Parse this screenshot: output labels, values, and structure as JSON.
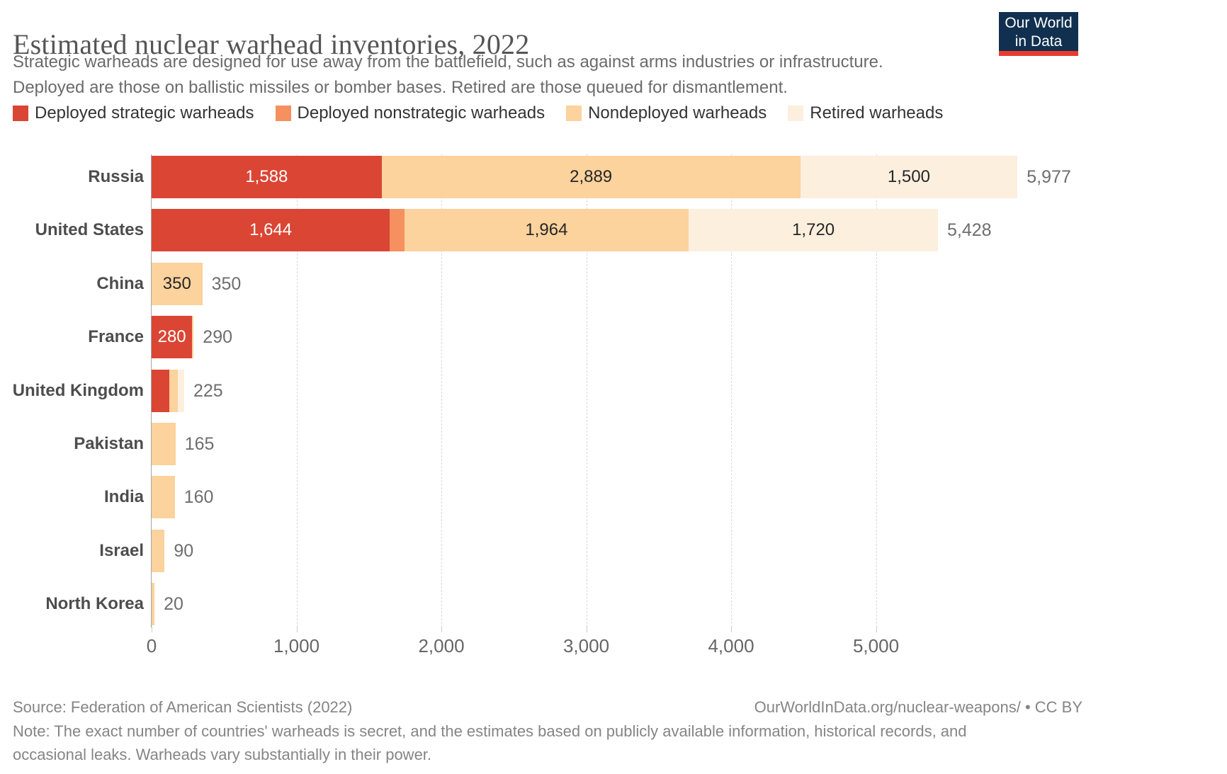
{
  "header": {
    "title": "Estimated nuclear warhead inventories, 2022",
    "subtitle_lines": [
      "Strategic warheads are designed for use away from the battlefield, such as against arms industries or infrastructure.",
      "Deployed are those on ballistic missiles or bomber bases. Retired are those queued for dismantlement."
    ],
    "logo": {
      "line1": "Our World",
      "line2": "in Data"
    }
  },
  "legend": [
    {
      "key": "deployed_strategic",
      "label": "Deployed strategic warheads",
      "color": "#db4534",
      "label_color": "#ffffff"
    },
    {
      "key": "deployed_nonstrategic",
      "label": "Deployed nonstrategic warheads",
      "color": "#f6905e",
      "label_color": "#ffffff"
    },
    {
      "key": "nondeployed",
      "label": "Nondeployed warheads",
      "color": "#fcd29d",
      "label_color": "#262626"
    },
    {
      "key": "retired",
      "label": "Retired warheads",
      "color": "#fcefde",
      "label_color": "#262626"
    }
  ],
  "chart_data": {
    "type": "bar",
    "orientation": "horizontal",
    "stacked": true,
    "title": "Estimated nuclear warhead inventories, 2022",
    "xlabel": "",
    "ylabel": "",
    "xlim": [
      0,
      6000
    ],
    "grid": "dashed-vertical",
    "legend_position": "top",
    "categories": [
      "Russia",
      "United States",
      "China",
      "France",
      "United Kingdom",
      "Pakistan",
      "India",
      "Israel",
      "North Korea"
    ],
    "series": [
      {
        "name": "Deployed strategic warheads",
        "key": "deployed_strategic",
        "values": [
          1588,
          1644,
          0,
          280,
          120,
          0,
          0,
          0,
          0
        ]
      },
      {
        "name": "Deployed nonstrategic warheads",
        "key": "deployed_nonstrategic",
        "values": [
          0,
          100,
          0,
          0,
          0,
          0,
          0,
          0,
          0
        ]
      },
      {
        "name": "Nondeployed warheads",
        "key": "nondeployed",
        "values": [
          2889,
          1964,
          350,
          10,
          60,
          165,
          160,
          90,
          20
        ]
      },
      {
        "name": "Retired warheads",
        "key": "retired",
        "values": [
          1500,
          1720,
          0,
          0,
          45,
          0,
          0,
          0,
          0
        ]
      }
    ],
    "totals": [
      5977,
      5428,
      350,
      290,
      225,
      165,
      160,
      90,
      20
    ],
    "total_labels": [
      "5,977",
      "5,428",
      "350",
      "290",
      "225",
      "165",
      "160",
      "90",
      "20"
    ],
    "segment_labels_shown": {
      "Russia": [
        "1,588",
        "2,889",
        "1,500"
      ],
      "United States": [
        "1,644",
        "1,964",
        "1,720"
      ],
      "China": [
        "350"
      ],
      "France": [
        "280"
      ]
    },
    "x_ticks": [
      {
        "value": 0,
        "label": "0"
      },
      {
        "value": 1000,
        "label": "1,000"
      },
      {
        "value": 2000,
        "label": "2,000"
      },
      {
        "value": 3000,
        "label": "3,000"
      },
      {
        "value": 4000,
        "label": "4,000"
      },
      {
        "value": 5000,
        "label": "5,000"
      }
    ]
  },
  "footer": {
    "source": "Source: Federation of American Scientists (2022)",
    "url_line": "OurWorldInData.org/nuclear-weapons/ • CC BY",
    "note_lines": [
      "Note: The exact number of countries' warheads is secret, and the estimates based on publicly available information, historical records, and",
      "occasional leaks. Warheads vary substantially in their power."
    ]
  }
}
